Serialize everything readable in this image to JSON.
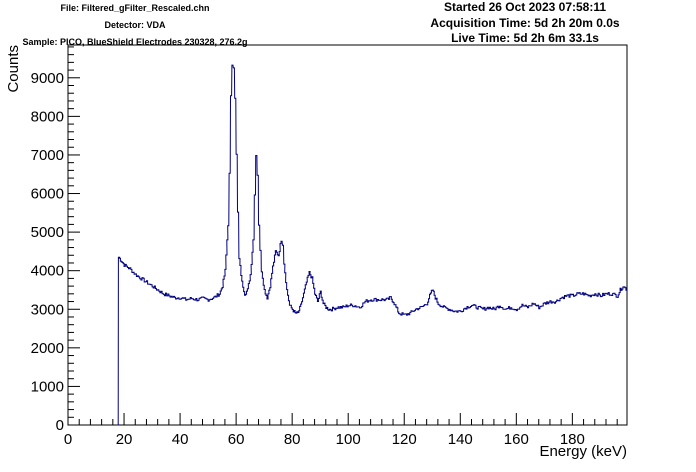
{
  "header": {
    "file": "File: Filtered_gFilter_Rescaled.chn",
    "detector": "Detector: VDA",
    "sample": "Sample: PICO, BlueShield Electrodes 230328, 276.2g",
    "started": "Started 26 Oct 2023 07:58:11",
    "acquisition_time": "Acquisition Time: 5d 2h 20m 0.0s",
    "live_time": "Live Time: 5d 2h 6m 33.1s"
  },
  "chart_data": {
    "type": "line",
    "title": "",
    "xlabel": "Energy (keV)",
    "ylabel": "Counts",
    "xlim": [
      0,
      199.5
    ],
    "ylim": [
      0,
      9850
    ],
    "x_ticks": [
      0,
      20,
      40,
      60,
      80,
      100,
      120,
      140,
      160,
      180
    ],
    "x_tick_labels": [
      "0",
      "20",
      "40",
      "60",
      "80",
      "100",
      "120",
      "140",
      "160",
      "180"
    ],
    "y_ticks": [
      0,
      1000,
      2000,
      3000,
      4000,
      5000,
      6000,
      7000,
      8000,
      9000
    ],
    "y_tick_labels": [
      "0",
      "1000",
      "2000",
      "3000",
      "4000",
      "5000",
      "6000",
      "7000",
      "8000",
      "9000"
    ],
    "grid": false,
    "legend": "none",
    "line_color": "#000080",
    "series": [
      {
        "x": [
          17.5,
          18,
          19,
          20,
          22,
          24,
          26,
          28,
          30,
          32,
          34,
          36,
          38,
          40,
          42,
          44,
          46,
          48,
          50,
          52,
          54,
          55,
          56,
          57,
          57.5,
          58,
          58.5,
          59,
          59.5,
          60,
          60.5,
          61,
          62,
          63,
          64,
          65,
          66,
          66.5,
          67,
          67.5,
          68,
          68.5,
          69,
          70,
          71,
          72,
          73,
          74,
          75,
          76,
          76.5,
          77,
          78,
          79,
          80,
          81,
          82,
          83,
          84,
          85,
          86,
          87,
          88,
          89,
          90,
          91,
          92,
          93,
          94,
          96,
          98,
          100,
          102,
          104,
          106,
          108,
          110,
          112,
          114,
          115,
          116,
          117,
          118,
          120,
          122,
          124,
          126,
          128,
          129,
          130,
          131,
          132,
          134,
          136,
          138,
          140,
          142,
          144,
          146,
          148,
          150,
          152,
          154,
          156,
          158,
          160,
          162,
          164,
          166,
          168,
          170,
          172,
          174,
          176,
          178,
          180,
          182,
          184,
          186,
          188,
          190,
          192,
          194,
          196,
          197,
          198,
          199.5
        ],
        "y": [
          0,
          4350,
          4250,
          4150,
          4050,
          3900,
          3800,
          3700,
          3600,
          3500,
          3400,
          3350,
          3300,
          3300,
          3250,
          3280,
          3250,
          3280,
          3250,
          3300,
          3400,
          3600,
          4000,
          5200,
          6500,
          8500,
          9350,
          9300,
          8500,
          7000,
          5500,
          4300,
          3700,
          3400,
          3500,
          3900,
          4800,
          6000,
          7000,
          6500,
          5200,
          4500,
          4000,
          3500,
          3300,
          3600,
          4100,
          4500,
          4400,
          4800,
          4700,
          4200,
          3500,
          3100,
          3000,
          2900,
          2900,
          3100,
          3400,
          3700,
          3950,
          3800,
          3400,
          3200,
          3450,
          3150,
          3050,
          3000,
          3000,
          3050,
          3050,
          3100,
          3100,
          3050,
          3200,
          3250,
          3250,
          3250,
          3250,
          3300,
          3200,
          3050,
          2900,
          2850,
          2900,
          3000,
          3050,
          3150,
          3350,
          3500,
          3300,
          3150,
          3050,
          3000,
          2950,
          2950,
          3050,
          3100,
          3050,
          3000,
          3050,
          3000,
          3100,
          3000,
          3050,
          3000,
          3100,
          3050,
          3150,
          3050,
          3150,
          3200,
          3200,
          3300,
          3350,
          3350,
          3400,
          3400,
          3350,
          3400,
          3350,
          3400,
          3400,
          3350,
          3500,
          3600,
          3500
        ]
      }
    ]
  }
}
